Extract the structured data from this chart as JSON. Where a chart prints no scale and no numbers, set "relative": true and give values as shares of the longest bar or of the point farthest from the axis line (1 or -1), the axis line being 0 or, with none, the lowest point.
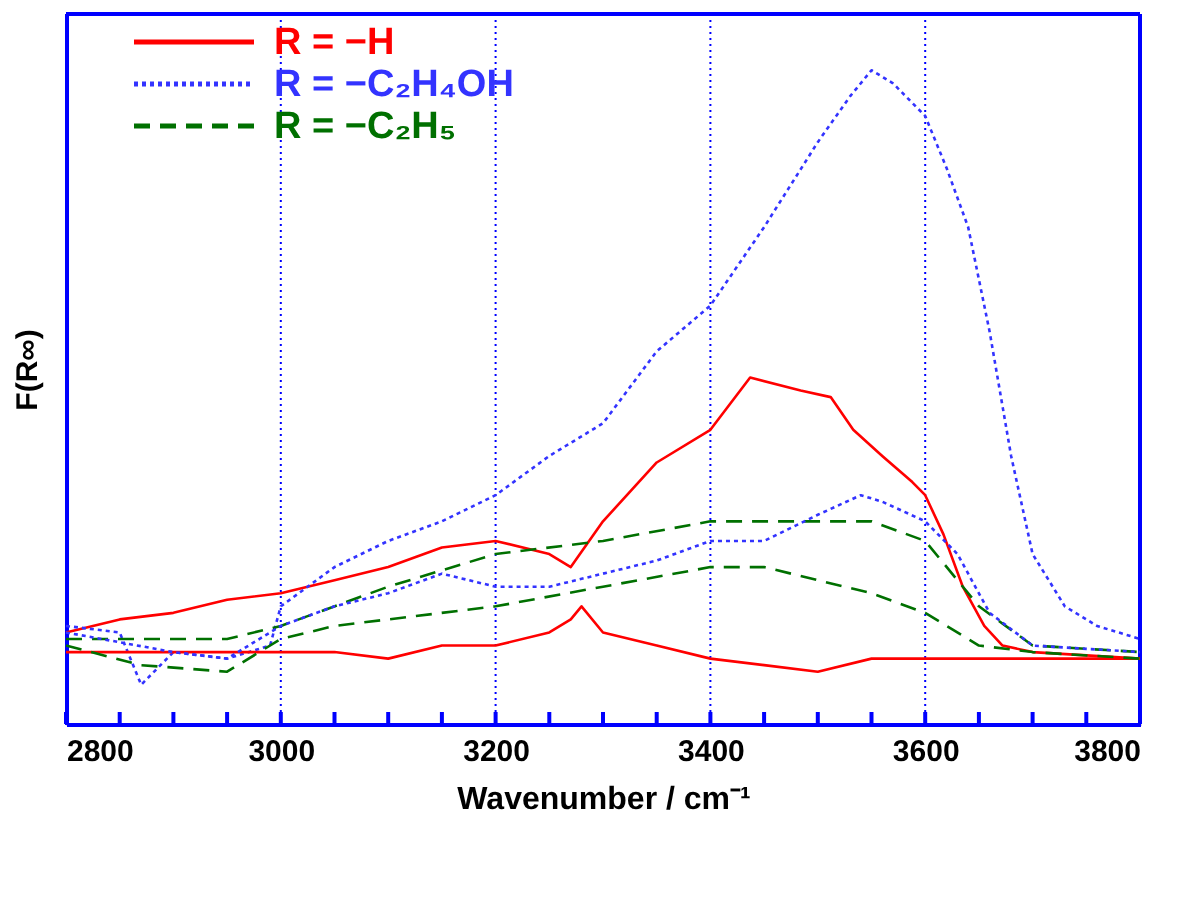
{
  "chart_data": {
    "type": "line",
    "relative": true,
    "xlabel": "Wavenumber / cm⁻¹",
    "ylabel": "F(R∞)",
    "xlim": [
      2800,
      3800
    ],
    "xticks": [
      2800,
      {
        "value": 2850,
        "label": null
      },
      {
        "value": 2900,
        "label": null
      },
      {
        "value": 2950,
        "label": null
      },
      3000,
      {
        "value": 3050,
        "label": null
      },
      {
        "value": 3100,
        "label": null
      },
      {
        "value": 3150,
        "label": null
      },
      3200,
      {
        "value": 3250,
        "label": null
      },
      {
        "value": 3300,
        "label": null
      },
      {
        "value": 3350,
        "label": null
      },
      3400,
      {
        "value": 3450,
        "label": null
      },
      {
        "value": 3500,
        "label": null
      },
      {
        "value": 3550,
        "label": null
      },
      3600,
      {
        "value": 3650,
        "label": null
      },
      {
        "value": 3700,
        "label": null
      },
      {
        "value": 3750,
        "label": null
      },
      3800
    ],
    "grid": "x",
    "legend": "top left",
    "tick_labels": "x",
    "series": [
      {
        "name": "R = −H",
        "color": "#ff0000",
        "line_style": "solid",
        "x": [
          2800,
          2850,
          2900,
          2950,
          3000,
          3050,
          3100,
          3150,
          3200,
          3250,
          3270,
          3300,
          3350,
          3400,
          3437,
          3484,
          3512,
          3533,
          3560,
          3588,
          3600,
          3617,
          3635,
          3655,
          3672,
          3700,
          3800
        ],
        "values": [
          0.14,
          0.16,
          0.17,
          0.19,
          0.2,
          0.22,
          0.24,
          0.27,
          0.28,
          0.26,
          0.24,
          0.31,
          0.4,
          0.45,
          0.53,
          0.51,
          0.5,
          0.45,
          0.41,
          0.37,
          0.35,
          0.29,
          0.21,
          0.15,
          0.12,
          0.11,
          0.1
        ]
      },
      {
        "name": "R = −C₂H₄OH",
        "color": "#3333ff",
        "line_style": "dotted",
        "x": [
          2800,
          2850,
          2870,
          2900,
          2950,
          2990,
          3000,
          3050,
          3100,
          3150,
          3200,
          3250,
          3300,
          3350,
          3400,
          3450,
          3500,
          3530,
          3550,
          3570,
          3600,
          3620,
          3640,
          3660,
          3680,
          3700,
          3730,
          3760,
          3800
        ],
        "values": [
          0.15,
          0.14,
          0.06,
          0.11,
          0.1,
          0.12,
          0.18,
          0.24,
          0.28,
          0.31,
          0.35,
          0.41,
          0.46,
          0.57,
          0.64,
          0.76,
          0.89,
          0.96,
          1.0,
          0.98,
          0.93,
          0.85,
          0.76,
          0.6,
          0.41,
          0.26,
          0.18,
          0.15,
          0.13
        ]
      },
      {
        "name": "R = −C₂H₅",
        "color": "#007000",
        "line_style": "dashed",
        "x": [
          2800,
          2900,
          2950,
          3000,
          3100,
          3200,
          3300,
          3400,
          3500,
          3550,
          3600,
          3650,
          3700,
          3800
        ],
        "values": [
          0.13,
          0.13,
          0.13,
          0.15,
          0.21,
          0.26,
          0.28,
          0.31,
          0.31,
          0.31,
          0.28,
          0.18,
          0.12,
          0.11
        ]
      },
      {
        "color": "#ff0000",
        "line_style": "solid",
        "x": [
          2800,
          2900,
          3000,
          3050,
          3100,
          3150,
          3200,
          3250,
          3270,
          3280,
          3300,
          3350,
          3400,
          3450,
          3500,
          3550,
          3600,
          3650,
          3700,
          3800
        ],
        "values": [
          0.11,
          0.11,
          0.11,
          0.11,
          0.1,
          0.12,
          0.12,
          0.14,
          0.16,
          0.18,
          0.14,
          0.12,
          0.1,
          0.09,
          0.08,
          0.1,
          0.1,
          0.1,
          0.1,
          0.1
        ]
      },
      {
        "color": "#3333ff",
        "line_style": "dotted",
        "x": [
          2800,
          2900,
          2950,
          3000,
          3050,
          3100,
          3150,
          3200,
          3250,
          3300,
          3350,
          3400,
          3450,
          3500,
          3540,
          3560,
          3600,
          3630,
          3660,
          3700,
          3800
        ],
        "values": [
          0.14,
          0.11,
          0.1,
          0.15,
          0.18,
          0.2,
          0.23,
          0.21,
          0.21,
          0.23,
          0.25,
          0.28,
          0.28,
          0.32,
          0.35,
          0.34,
          0.31,
          0.26,
          0.17,
          0.12,
          0.11
        ]
      },
      {
        "color": "#007000",
        "line_style": "dashed",
        "x": [
          2800,
          2870,
          2950,
          3000,
          3050,
          3100,
          3200,
          3300,
          3400,
          3450,
          3500,
          3550,
          3600,
          3650,
          3700,
          3800
        ],
        "values": [
          0.12,
          0.09,
          0.08,
          0.13,
          0.15,
          0.16,
          0.18,
          0.21,
          0.24,
          0.24,
          0.22,
          0.2,
          0.17,
          0.12,
          0.11,
          0.1
        ]
      }
    ]
  }
}
